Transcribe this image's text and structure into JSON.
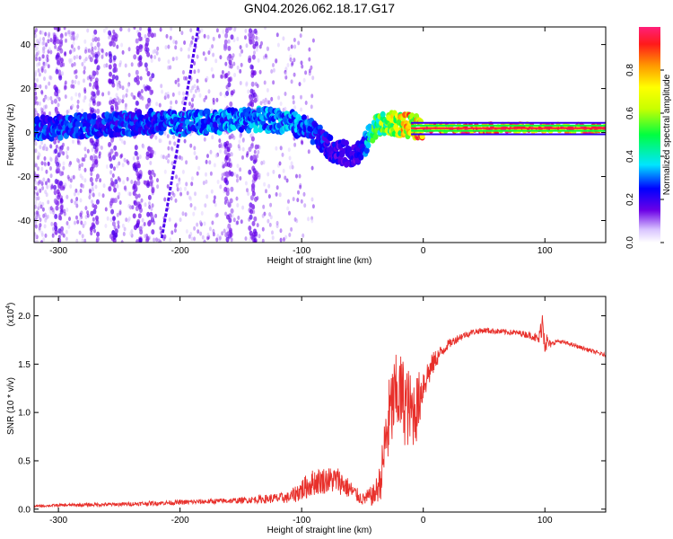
{
  "title": "GN04.2026.062.18.17.G17",
  "chart_data": [
    {
      "type": "heatmap",
      "xlabel": "Height of straight line (km)",
      "ylabel": "Frequency (Hz)",
      "xlim": [
        -320,
        150
      ],
      "ylim": [
        -50,
        48
      ],
      "xticks": [
        -300,
        -200,
        -100,
        0,
        100
      ],
      "yticks": [
        -40,
        -20,
        0,
        20,
        40
      ],
      "colorbar": {
        "label": "Normalized spectral amplitude",
        "range": [
          0,
          1
        ],
        "ticks": [
          0.0,
          0.2,
          0.4,
          0.6,
          0.8
        ],
        "tick_labels": [
          "0.0",
          "0.2",
          "0.4",
          "0.6",
          "0.8"
        ]
      },
      "ridge": [
        {
          "x": -310,
          "freq": 2,
          "amp": 0.3
        },
        {
          "x": -280,
          "freq": 3,
          "amp": 0.3
        },
        {
          "x": -250,
          "freq": 4,
          "amp": 0.3
        },
        {
          "x": -220,
          "freq": 5,
          "amp": 0.3
        },
        {
          "x": -200,
          "freq": 4,
          "amp": 0.35
        },
        {
          "x": -170,
          "freq": 5,
          "amp": 0.35
        },
        {
          "x": -140,
          "freq": 6,
          "amp": 0.35
        },
        {
          "x": -110,
          "freq": 5,
          "amp": 0.35
        },
        {
          "x": -90,
          "freq": 0,
          "amp": 0.3
        },
        {
          "x": -75,
          "freq": -8,
          "amp": 0.25
        },
        {
          "x": -60,
          "freq": -10,
          "amp": 0.2
        },
        {
          "x": -50,
          "freq": -8,
          "amp": 0.25
        },
        {
          "x": -40,
          "freq": 3,
          "amp": 0.55
        },
        {
          "x": -25,
          "freq": 4,
          "amp": 0.7
        },
        {
          "x": -10,
          "freq": 3,
          "amp": 0.85
        },
        {
          "x": 0,
          "freq": 2,
          "amp": 0.9
        },
        {
          "x": 50,
          "freq": 2,
          "amp": 0.95
        },
        {
          "x": 90,
          "freq": 2,
          "amp": 0.95
        },
        {
          "x": 150,
          "freq": 2,
          "amp": 0.95
        }
      ],
      "streak": [
        {
          "x": -215,
          "freq": -48
        },
        {
          "x": -185,
          "freq": 48
        }
      ]
    },
    {
      "type": "line",
      "xlabel": "Height of straight line (km)",
      "ylabel": "SNR (10 * v/v)",
      "scale_label": "(x10",
      "scale_exponent": "4",
      "xlim": [
        -320,
        150
      ],
      "ylim": [
        -0.03,
        2.2
      ],
      "xticks": [
        -300,
        -200,
        -100,
        0,
        100
      ],
      "yticks": [
        0.0,
        0.5,
        1.0,
        1.5,
        2.0
      ],
      "ytick_labels": [
        "0.0",
        "0.5",
        "1.0",
        "1.5",
        "2.0"
      ],
      "color": "#e8302b",
      "x": [
        -320,
        -300,
        -250,
        -200,
        -150,
        -110,
        -100,
        -90,
        -80,
        -70,
        -60,
        -50,
        -40,
        -35,
        -30,
        -25,
        -20,
        -15,
        -10,
        -5,
        0,
        10,
        20,
        30,
        40,
        50,
        60,
        70,
        80,
        90,
        95,
        98,
        100,
        102,
        105,
        110,
        120,
        130,
        140,
        150
      ],
      "y": [
        0.03,
        0.04,
        0.05,
        0.07,
        0.09,
        0.12,
        0.2,
        0.28,
        0.3,
        0.3,
        0.2,
        0.1,
        0.15,
        0.3,
        0.8,
        1.1,
        1.2,
        1.1,
        1.0,
        1.05,
        1.3,
        1.55,
        1.7,
        1.78,
        1.83,
        1.85,
        1.84,
        1.83,
        1.82,
        1.79,
        1.75,
        1.95,
        1.78,
        1.72,
        1.7,
        1.74,
        1.71,
        1.67,
        1.63,
        1.59
      ],
      "noise": [
        0.01,
        0.015,
        0.02,
        0.025,
        0.03,
        0.06,
        0.12,
        0.14,
        0.14,
        0.14,
        0.1,
        0.06,
        0.12,
        0.2,
        0.45,
        0.45,
        0.45,
        0.45,
        0.4,
        0.35,
        0.2,
        0.1,
        0.05,
        0.04,
        0.03,
        0.03,
        0.03,
        0.03,
        0.03,
        0.04,
        0.06,
        0.15,
        0.2,
        0.08,
        0.03,
        0.02,
        0.02,
        0.02,
        0.02,
        0.02
      ]
    }
  ]
}
